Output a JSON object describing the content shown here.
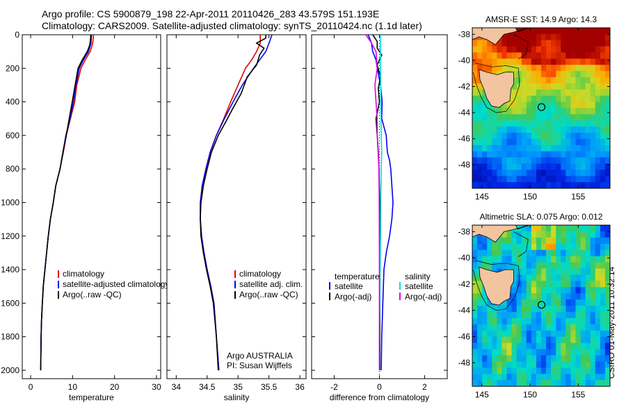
{
  "header": {
    "line1": "Argo profile: CS 5900879_198 22-Apr-2011 20110426_283 43.579S 151.193E",
    "line2": "Climatology: CARS2009. Satellite-adjusted climatology: synTS_20110424.nc (1.1d later)"
  },
  "side_label": "CSIRO 01-May-2011 10:32:14",
  "colors": {
    "red": "#e00000",
    "blue": "#0000ee",
    "black": "#000000",
    "cyan": "#00e0e0",
    "magenta": "#e000e0"
  },
  "chart_data": [
    {
      "id": "temperature",
      "type": "line",
      "xlabel": "temperature",
      "xlim": [
        -2,
        31
      ],
      "ylim": [
        0,
        2050
      ],
      "y_reversed": true,
      "xticks": [
        0,
        10,
        20,
        30
      ],
      "yticks": [
        0,
        200,
        400,
        600,
        800,
        1000,
        1200,
        1400,
        1600,
        1800,
        2000
      ],
      "legend": [
        "climatology",
        "satellite-adjusted climatology",
        "Argo(..raw -QC)"
      ],
      "series": [
        {
          "name": "climatology",
          "color": "red",
          "x": [
            15.0,
            14.8,
            14.2,
            13.0,
            12.0,
            11.0,
            10.5,
            9.5,
            8.5,
            7.8,
            7.0,
            6.0,
            5.4,
            4.7,
            4.2,
            3.8,
            3.4,
            3.0,
            2.8,
            2.6,
            2.5,
            2.4
          ],
          "y": [
            0,
            50,
            100,
            150,
            200,
            300,
            400,
            500,
            600,
            700,
            800,
            900,
            1000,
            1100,
            1200,
            1300,
            1400,
            1500,
            1600,
            1700,
            1800,
            2000
          ]
        },
        {
          "name": "satellite-adjusted climatology",
          "color": "blue",
          "x": [
            14.5,
            14.4,
            13.8,
            12.6,
            11.6,
            10.8,
            10.2,
            9.4,
            8.4,
            7.7,
            7.0,
            6.0,
            5.4,
            4.7,
            4.2,
            3.8,
            3.4,
            3.0,
            2.8,
            2.6,
            2.5,
            2.4
          ],
          "y": [
            0,
            50,
            100,
            150,
            200,
            300,
            400,
            500,
            600,
            700,
            800,
            900,
            1000,
            1100,
            1200,
            1300,
            1400,
            1500,
            1600,
            1700,
            1800,
            2000
          ]
        },
        {
          "name": "Argo(..raw -QC)",
          "color": "black",
          "x": [
            14.3,
            14.3,
            14.1,
            13.5,
            12.3,
            11.3,
            10.6,
            9.9,
            9.2,
            8.5,
            7.7,
            7.0,
            6.0,
            5.4,
            4.7,
            4.2,
            3.8,
            3.4,
            3.0,
            2.8,
            2.6,
            2.5,
            2.4
          ],
          "y": [
            0,
            20,
            60,
            100,
            150,
            200,
            300,
            400,
            500,
            600,
            700,
            800,
            900,
            1000,
            1100,
            1200,
            1300,
            1400,
            1500,
            1600,
            1700,
            1800,
            2000
          ]
        }
      ]
    },
    {
      "id": "salinity",
      "type": "line",
      "xlabel": "salinity",
      "xlim": [
        33.85,
        36.1
      ],
      "ylim": [
        0,
        2050
      ],
      "y_reversed": true,
      "xticks": [
        34,
        34.5,
        35,
        35.5,
        36
      ],
      "legend": [
        "climatology",
        "satellite adj. clim.",
        "Argo(..raw -QC)"
      ],
      "annotation": [
        "Argo AUSTRALIA",
        "PI: Susan Wijffels"
      ],
      "series": [
        {
          "name": "climatology",
          "color": "red",
          "x": [
            35.36,
            35.36,
            35.3,
            35.22,
            35.12,
            35.0,
            34.88,
            34.77,
            34.65,
            34.55,
            34.48,
            34.42,
            34.39,
            34.39,
            34.41,
            34.45,
            34.5,
            34.56,
            34.61,
            34.65,
            34.69
          ],
          "y": [
            0,
            50,
            100,
            150,
            200,
            300,
            400,
            500,
            600,
            700,
            800,
            900,
            1000,
            1100,
            1200,
            1300,
            1400,
            1500,
            1600,
            1800,
            2000
          ]
        },
        {
          "name": "satellite adj. clim.",
          "color": "blue",
          "x": [
            35.55,
            35.5,
            35.45,
            35.35,
            35.25,
            35.07,
            34.92,
            34.78,
            34.65,
            34.55,
            34.48,
            34.42,
            34.39,
            34.39,
            34.41,
            34.45,
            34.5,
            34.56,
            34.61,
            34.65,
            34.69
          ],
          "y": [
            0,
            50,
            100,
            150,
            200,
            300,
            400,
            500,
            600,
            700,
            800,
            900,
            1000,
            1100,
            1200,
            1300,
            1400,
            1500,
            1600,
            1800,
            2000
          ]
        },
        {
          "name": "Argo(..raw -QC)",
          "color": "black",
          "x": [
            35.45,
            35.45,
            35.3,
            35.42,
            35.35,
            35.3,
            35.15,
            35.05,
            34.9,
            34.8,
            34.68,
            34.57,
            34.5,
            34.44,
            34.4,
            34.39,
            34.4,
            34.44,
            34.49,
            34.55,
            34.6,
            34.65,
            34.68
          ],
          "y": [
            0,
            20,
            50,
            80,
            120,
            180,
            250,
            350,
            450,
            520,
            600,
            700,
            800,
            900,
            1000,
            1100,
            1200,
            1300,
            1400,
            1500,
            1600,
            1800,
            2000
          ]
        }
      ]
    },
    {
      "id": "difference",
      "type": "line",
      "xlabel": "difference from climatology",
      "xlim": [
        -3,
        3
      ],
      "ylim": [
        0,
        2050
      ],
      "y_reversed": true,
      "xticks": [
        -2,
        0,
        2
      ],
      "legend_left": [
        "temperature",
        "satellite",
        "Argo(-adj)"
      ],
      "legend_right": [
        "salinity",
        "satellite",
        "Argo(-adj)"
      ],
      "series": [
        {
          "name": "temperature satellite",
          "color": "blue",
          "x": [
            -0.5,
            -0.35,
            -0.3,
            -0.15,
            -0.1,
            0.05,
            0.12,
            0.1,
            0.3,
            0.35,
            0.45,
            0.5,
            0.55,
            0.6,
            0.55,
            0.45,
            0.3,
            0.2,
            0.15,
            0.1,
            0.08
          ],
          "y": [
            0,
            50,
            100,
            150,
            200,
            300,
            400,
            500,
            600,
            700,
            750,
            800,
            900,
            1000,
            1100,
            1200,
            1300,
            1400,
            1600,
            1800,
            2000
          ]
        },
        {
          "name": "temperature Argo(-adj)",
          "color": "black",
          "x": [
            -0.3,
            -0.1,
            -0.1,
            0.1,
            -0.1,
            0.05,
            -0.05,
            0.0,
            -0.15,
            -0.1,
            -0.05,
            -0.02,
            0.0,
            0.02,
            0.02,
            0.02,
            0.02,
            0.02,
            0.02,
            0.02
          ],
          "y": [
            0,
            40,
            80,
            120,
            180,
            250,
            320,
            400,
            500,
            600,
            700,
            800,
            900,
            1000,
            1100,
            1300,
            1500,
            1700,
            1900,
            2000
          ]
        },
        {
          "name": "salinity satellite",
          "color": "cyan",
          "x": [
            0.05,
            0.05,
            0.06,
            0.08,
            0.1,
            0.08,
            0.06,
            0.05,
            0.03,
            0.02,
            0.0,
            0.0
          ],
          "y": [
            0,
            200,
            400,
            600,
            700,
            800,
            1000,
            1200,
            1400,
            1600,
            1800,
            2000
          ]
        },
        {
          "name": "salinity Argo(-adj)",
          "color": "magenta",
          "x": [
            -0.6,
            -0.35,
            -0.15,
            -0.1,
            -0.2,
            -0.15,
            -0.1,
            -0.1,
            -0.02,
            -0.01,
            0.0,
            0.0
          ],
          "y": [
            0,
            50,
            100,
            200,
            300,
            400,
            500,
            600,
            800,
            1000,
            1400,
            2000
          ]
        }
      ]
    },
    {
      "id": "sst-map",
      "type": "heatmap",
      "title": "AMSR-E SST: 14.9 Argo: 14.3",
      "xlim": [
        144,
        158.3
      ],
      "ylim": [
        -49.8,
        -37.5
      ],
      "xticks": [
        145,
        150,
        155
      ],
      "yticks": [
        -38,
        -40,
        -42,
        -44,
        -46,
        -48
      ],
      "marker": {
        "lon": 151.19,
        "lat": -43.58
      }
    },
    {
      "id": "sla-map",
      "type": "heatmap",
      "title": "Altimetric SLA: 0.075 Argo: 0.012",
      "xlim": [
        144,
        158.3
      ],
      "ylim": [
        -49.8,
        -37.5
      ],
      "xticks": [
        145,
        150,
        155
      ],
      "yticks": [
        -38,
        -40,
        -42,
        -44,
        -46,
        -48
      ],
      "marker": {
        "lon": 151.19,
        "lat": -43.58
      }
    }
  ]
}
